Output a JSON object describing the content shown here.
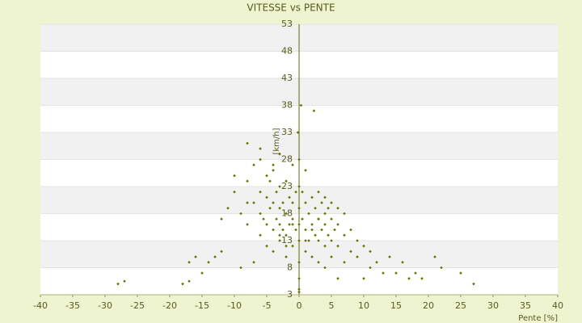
{
  "chart_data": {
    "type": "scatter",
    "title": "VITESSE vs PENTE",
    "x_label": "Pente [%]",
    "y_label": "[km/h]",
    "color": "#6b7000",
    "grid": true,
    "xlim": [
      -40,
      40
    ],
    "xticks": [
      -40,
      -35,
      -30,
      -25,
      -20,
      -15,
      -10,
      -5,
      0,
      5,
      10,
      15,
      20,
      25,
      30,
      35,
      40
    ],
    "ylim": [
      3,
      53
    ],
    "yticks": [
      3,
      8,
      13,
      18,
      23,
      28,
      33,
      38,
      43,
      48,
      53
    ],
    "x": [
      -28,
      -27,
      -18,
      -17,
      -17,
      -16,
      -15,
      -14,
      -13,
      -12,
      -11,
      -10,
      -10,
      -9,
      -9,
      -8,
      -8,
      -8,
      -7,
      -7,
      -7,
      -6,
      -6,
      -6,
      -6,
      -5.5,
      -5,
      -5,
      -5,
      -5,
      -4.5,
      -4.5,
      -4,
      -4,
      -4,
      -4,
      -3.5,
      -3.5,
      -3,
      -3,
      -3,
      -3,
      -3,
      -2.5,
      -2.5,
      -2,
      -2,
      -2,
      -2,
      -1.5,
      -1.5,
      -1,
      -1,
      -1,
      -1,
      -0.5,
      -0.5,
      0,
      0,
      0,
      0,
      0,
      0,
      0,
      0.3,
      0.5,
      0.5,
      1,
      1,
      1,
      1,
      1.5,
      1.5,
      2,
      2,
      2,
      2.5,
      2.5,
      3,
      3,
      3,
      3,
      3.5,
      3.5,
      4,
      4,
      4,
      4,
      4.5,
      4.5,
      5,
      5,
      5,
      5,
      5.5,
      6,
      6,
      6,
      7,
      7,
      7,
      8,
      8,
      9,
      9,
      10,
      10,
      11,
      11,
      12,
      13,
      14,
      15,
      16,
      17,
      18,
      19,
      21,
      22,
      25,
      27,
      -3,
      -2,
      -1,
      0,
      1,
      2,
      3,
      -6,
      -4,
      4,
      6,
      0,
      -0.2,
      2.3,
      -8,
      -12
    ],
    "values": [
      5,
      5.5,
      5,
      5.5,
      9,
      10,
      7,
      9,
      10,
      11,
      19,
      22,
      25,
      8,
      18,
      31,
      24,
      16,
      9,
      20,
      27,
      14,
      18,
      22,
      28,
      17,
      12,
      16,
      21,
      25,
      19,
      24,
      11,
      15,
      20,
      26,
      17,
      22,
      13,
      16,
      19,
      23,
      29,
      15,
      20,
      10,
      14,
      18,
      24,
      16,
      21,
      12,
      17,
      20,
      27,
      15,
      22,
      6,
      9,
      13,
      16,
      19,
      23,
      28,
      38,
      17,
      22,
      11,
      15,
      20,
      26,
      13,
      18,
      10,
      16,
      21,
      14,
      19,
      9,
      13,
      17,
      22,
      15,
      20,
      12,
      16,
      18,
      21,
      14,
      19,
      10,
      13,
      17,
      20,
      15,
      12,
      16,
      19,
      9,
      14,
      18,
      11,
      15,
      10,
      13,
      6,
      12,
      8,
      11,
      9,
      7,
      10,
      7,
      9,
      6,
      7,
      6,
      10,
      8,
      7,
      5,
      14,
      12,
      16,
      4,
      13,
      15,
      17,
      30,
      27,
      8,
      6,
      3.5,
      33,
      37,
      20,
      17
    ]
  }
}
